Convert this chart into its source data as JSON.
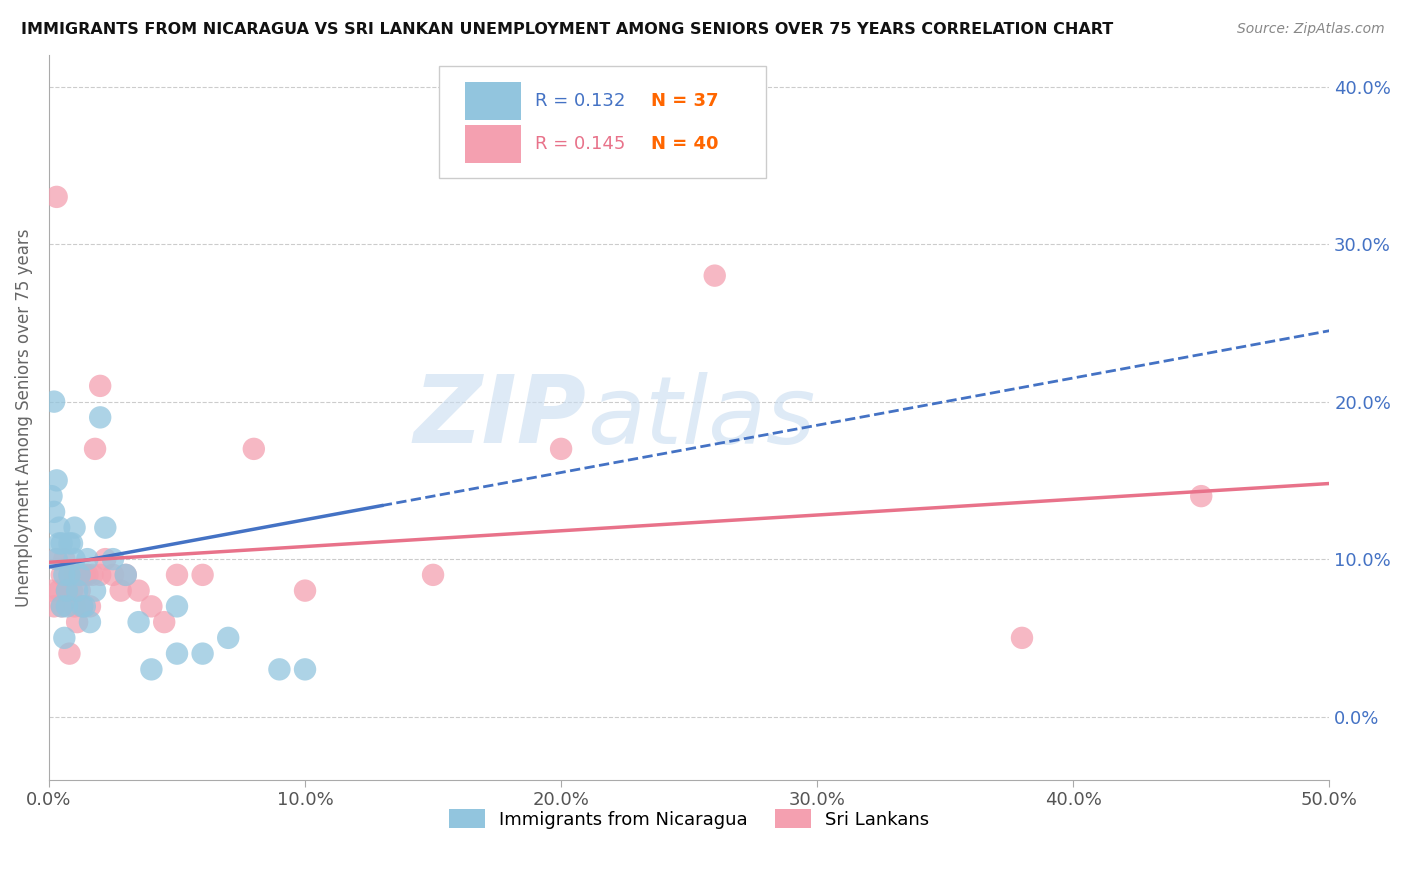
{
  "title": "IMMIGRANTS FROM NICARAGUA VS SRI LANKAN UNEMPLOYMENT AMONG SENIORS OVER 75 YEARS CORRELATION CHART",
  "source": "Source: ZipAtlas.com",
  "xlabel_ticks": [
    "0.0%",
    "10.0%",
    "20.0%",
    "30.0%",
    "40.0%",
    "50.0%"
  ],
  "ylabel_ticks": [
    "0.0%",
    "10.0%",
    "20.0%",
    "30.0%",
    "40.0%"
  ],
  "xlim": [
    0,
    0.5
  ],
  "ylim": [
    -0.04,
    0.42
  ],
  "legend1_label": "Immigrants from Nicaragua",
  "legend2_label": "Sri Lankans",
  "R1": 0.132,
  "N1": 37,
  "R2": 0.145,
  "N2": 40,
  "color_blue": "#92C5DE",
  "color_pink": "#F4A0B0",
  "color_blue_line": "#4472C4",
  "color_pink_line": "#E8728A",
  "color_title": "#222222",
  "color_source": "#888888",
  "watermark": "ZIPatlas",
  "blue_x": [
    0.001,
    0.002,
    0.002,
    0.003,
    0.003,
    0.004,
    0.004,
    0.005,
    0.005,
    0.006,
    0.006,
    0.007,
    0.007,
    0.008,
    0.008,
    0.009,
    0.01,
    0.01,
    0.011,
    0.012,
    0.013,
    0.014,
    0.015,
    0.016,
    0.018,
    0.02,
    0.022,
    0.025,
    0.03,
    0.035,
    0.04,
    0.05,
    0.06,
    0.07,
    0.09,
    0.1,
    0.05
  ],
  "blue_y": [
    0.14,
    0.2,
    0.13,
    0.15,
    0.1,
    0.12,
    0.11,
    0.11,
    0.07,
    0.09,
    0.05,
    0.08,
    0.07,
    0.09,
    0.11,
    0.11,
    0.12,
    0.1,
    0.08,
    0.09,
    0.07,
    0.07,
    0.1,
    0.06,
    0.08,
    0.19,
    0.12,
    0.1,
    0.09,
    0.06,
    0.03,
    0.07,
    0.04,
    0.05,
    0.03,
    0.03,
    0.04
  ],
  "pink_x": [
    0.001,
    0.002,
    0.003,
    0.003,
    0.004,
    0.005,
    0.005,
    0.006,
    0.007,
    0.008,
    0.008,
    0.009,
    0.01,
    0.01,
    0.011,
    0.012,
    0.013,
    0.014,
    0.015,
    0.016,
    0.017,
    0.018,
    0.02,
    0.022,
    0.025,
    0.028,
    0.03,
    0.035,
    0.04,
    0.045,
    0.05,
    0.06,
    0.08,
    0.1,
    0.15,
    0.2,
    0.26,
    0.38,
    0.45,
    0.02
  ],
  "pink_y": [
    0.08,
    0.07,
    0.33,
    0.1,
    0.08,
    0.09,
    0.07,
    0.1,
    0.08,
    0.09,
    0.04,
    0.08,
    0.09,
    0.07,
    0.06,
    0.08,
    0.07,
    0.09,
    0.09,
    0.07,
    0.09,
    0.17,
    0.21,
    0.1,
    0.09,
    0.08,
    0.09,
    0.08,
    0.07,
    0.06,
    0.09,
    0.09,
    0.17,
    0.08,
    0.09,
    0.17,
    0.28,
    0.05,
    0.14,
    0.09
  ],
  "blue_line_x0": 0.0,
  "blue_line_x1": 0.5,
  "blue_line_y0": 0.095,
  "blue_line_y1": 0.245,
  "pink_line_x0": 0.0,
  "pink_line_x1": 0.5,
  "pink_line_y0": 0.098,
  "pink_line_y1": 0.148
}
